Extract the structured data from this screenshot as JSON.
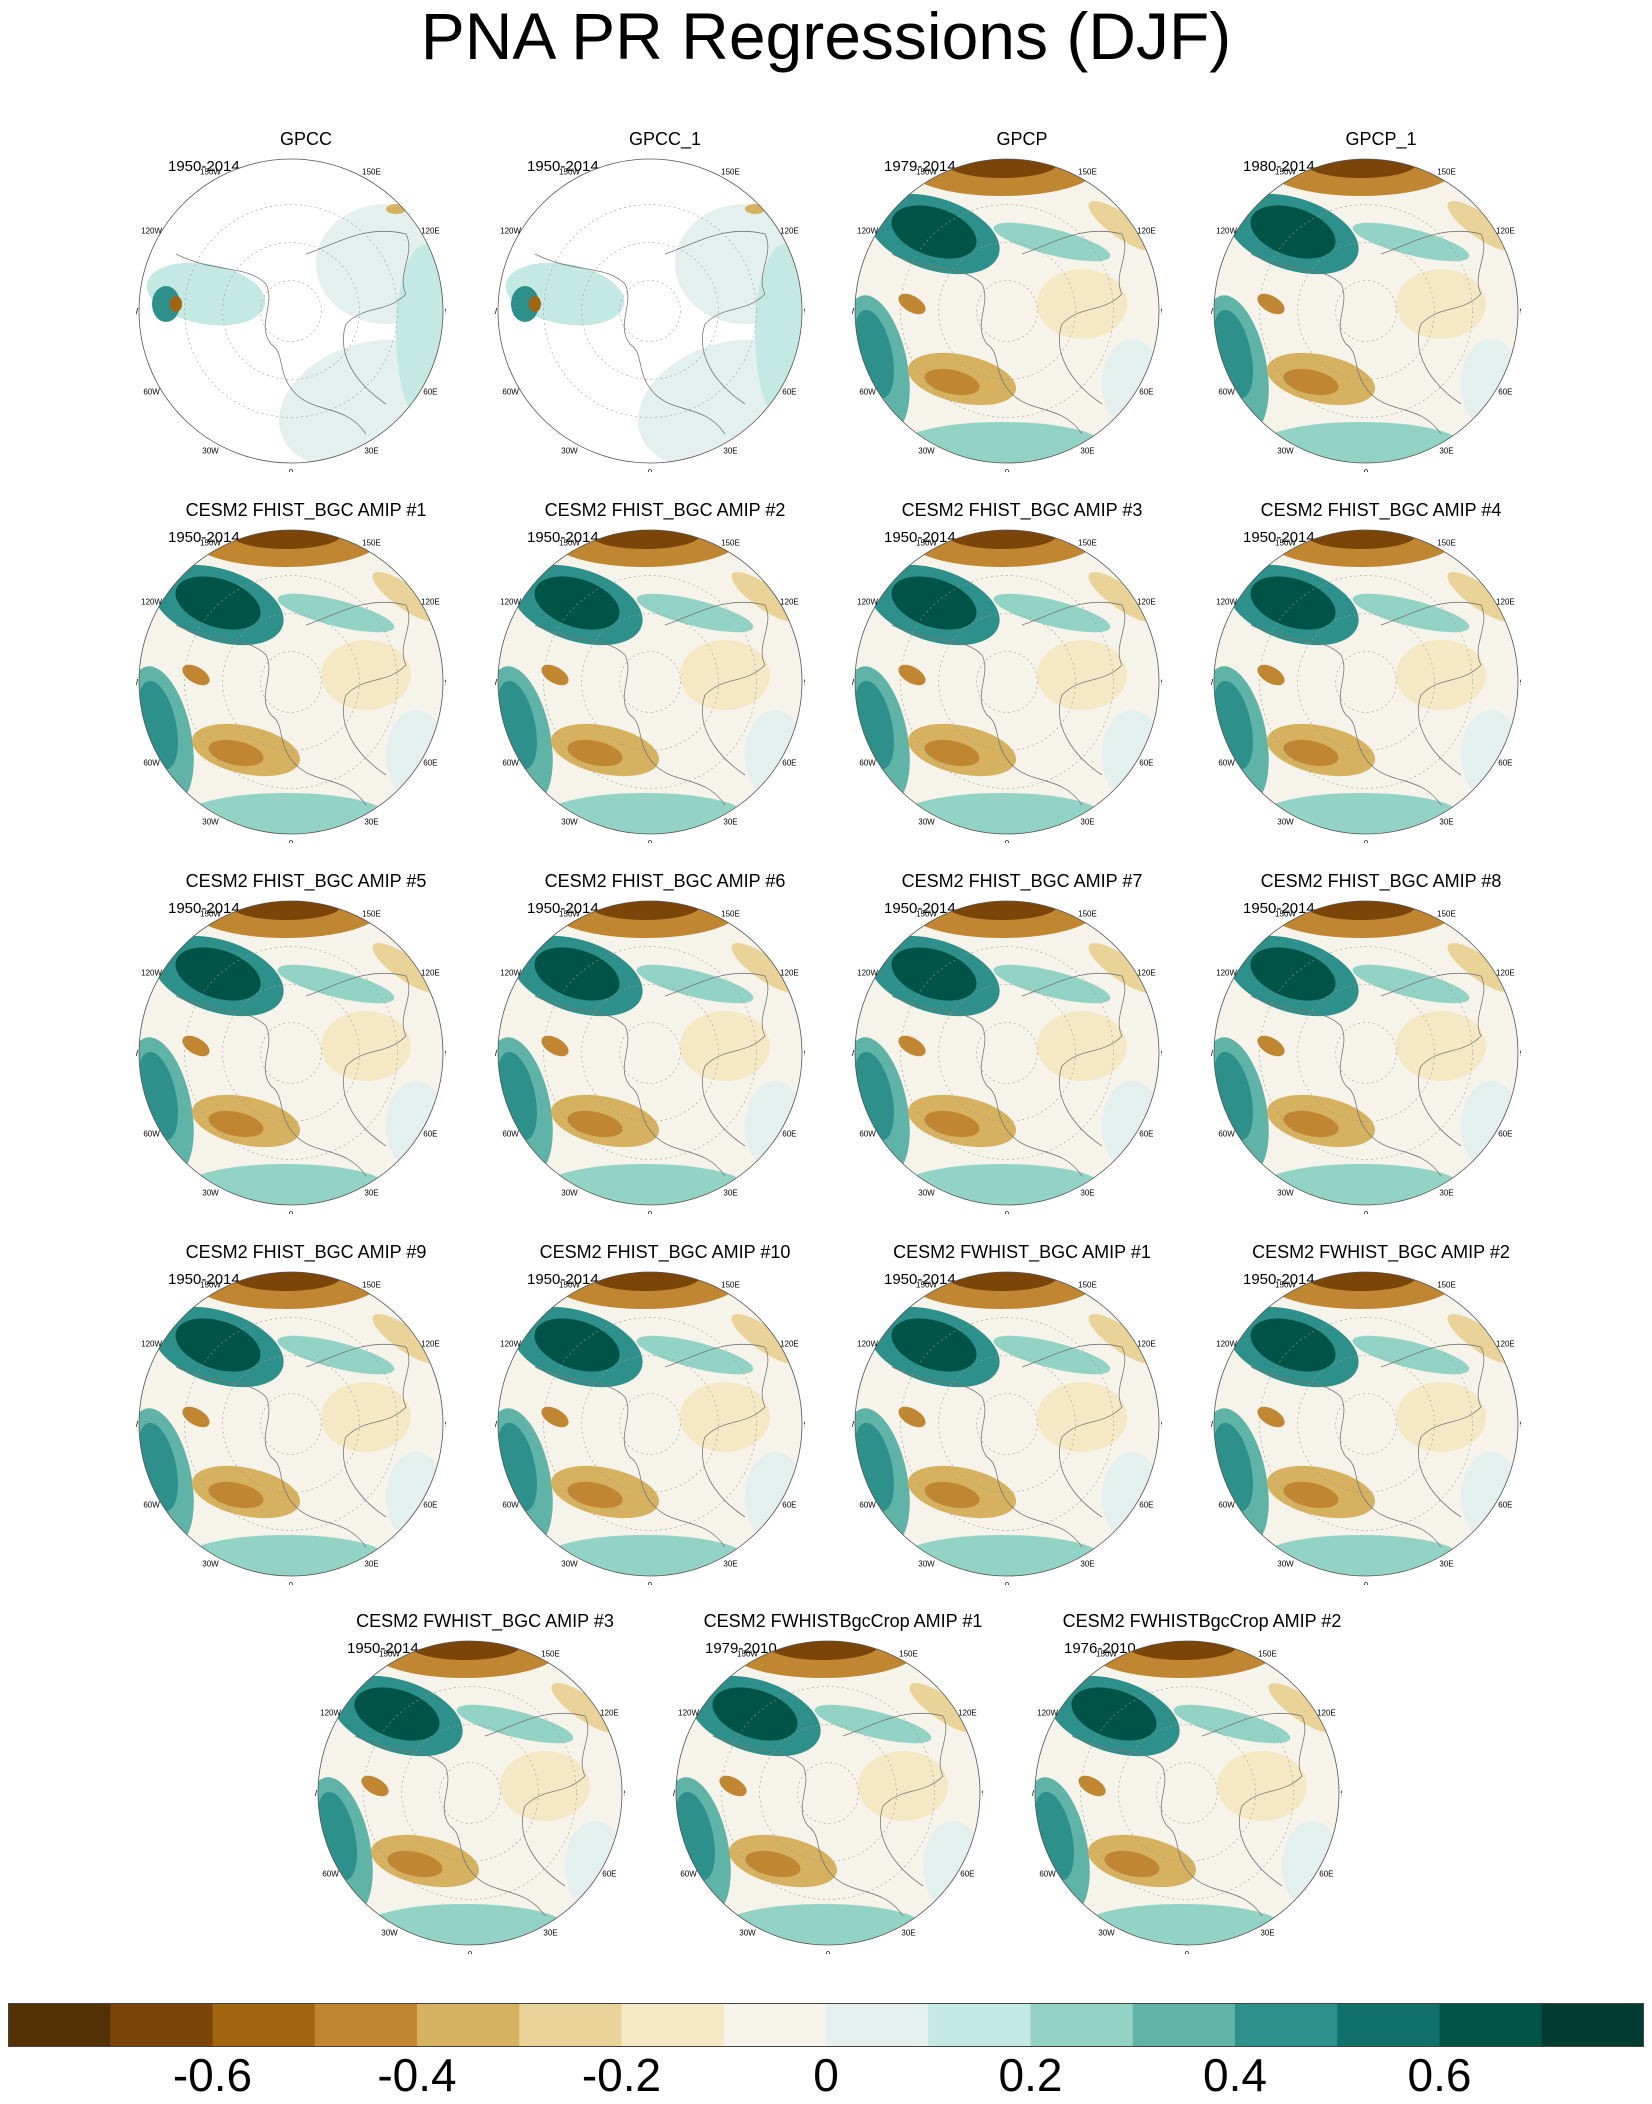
{
  "title": "PNA PR Regressions (DJF)",
  "panels": [
    {
      "title": "GPCC",
      "years": "1950-2014",
      "style": "gpcc"
    },
    {
      "title": "GPCC_1",
      "years": "1950-2014",
      "style": "gpcc"
    },
    {
      "title": "GPCP",
      "years": "1979-2014",
      "style": "full"
    },
    {
      "title": "GPCP_1",
      "years": "1980-2014",
      "style": "full"
    },
    {
      "title": "CESM2 FHIST_BGC AMIP #1",
      "years": "1950-2014",
      "style": "full"
    },
    {
      "title": "CESM2 FHIST_BGC AMIP #2",
      "years": "1950-2014",
      "style": "full"
    },
    {
      "title": "CESM2 FHIST_BGC AMIP #3",
      "years": "1950-2014",
      "style": "full"
    },
    {
      "title": "CESM2 FHIST_BGC AMIP #4",
      "years": "1950-2014",
      "style": "full"
    },
    {
      "title": "CESM2 FHIST_BGC AMIP #5",
      "years": "1950-2014",
      "style": "full"
    },
    {
      "title": "CESM2 FHIST_BGC AMIP #6",
      "years": "1950-2014",
      "style": "full"
    },
    {
      "title": "CESM2 FHIST_BGC AMIP #7",
      "years": "1950-2014",
      "style": "full"
    },
    {
      "title": "CESM2 FHIST_BGC AMIP #8",
      "years": "1950-2014",
      "style": "full"
    },
    {
      "title": "CESM2 FHIST_BGC AMIP #9",
      "years": "1950-2014",
      "style": "full"
    },
    {
      "title": "CESM2 FHIST_BGC AMIP #10",
      "years": "1950-2014",
      "style": "full"
    },
    {
      "title": "CESM2 FWHIST_BGC AMIP #1",
      "years": "1950-2014",
      "style": "full"
    },
    {
      "title": "CESM2 FWHIST_BGC AMIP #2",
      "years": "1950-2014",
      "style": "full"
    },
    {
      "title": "CESM2 FWHIST_BGC AMIP #3",
      "years": "1950-2014",
      "style": "full"
    },
    {
      "title": "CESM2 FWHISTBgcCrop AMIP #1",
      "years": "1979-2010",
      "style": "full"
    },
    {
      "title": "CESM2 FWHISTBgcCrop AMIP #2",
      "years": "1976-2010",
      "style": "full"
    }
  ],
  "longitude_labels": [
    "180",
    "150E",
    "120E",
    "90E",
    "60E",
    "30E",
    "0",
    "30W",
    "60W",
    "90W",
    "120W",
    "150W"
  ],
  "colorbar": {
    "colors": [
      "#543005",
      "#7b4409",
      "#a1640f",
      "#c08631",
      "#d6b15f",
      "#e9d398",
      "#f5e8c4",
      "#f6f3ea",
      "#e4f0ee",
      "#c4e9e2",
      "#93d3c5",
      "#5fb3a7",
      "#2d908a",
      "#0f716a",
      "#005347",
      "#003c30"
    ],
    "tick_labels": [
      "-0.6",
      "-0.4",
      "-0.2",
      "0",
      "0.2",
      "0.4",
      "0.6"
    ],
    "tick_values": [
      -0.6,
      -0.4,
      -0.2,
      0,
      0.2,
      0.4,
      0.6
    ],
    "levels": [
      -0.7,
      -0.6,
      -0.5,
      -0.4,
      -0.3,
      -0.2,
      -0.1,
      0,
      0.1,
      0.2,
      0.3,
      0.4,
      0.5,
      0.6,
      0.7
    ]
  }
}
